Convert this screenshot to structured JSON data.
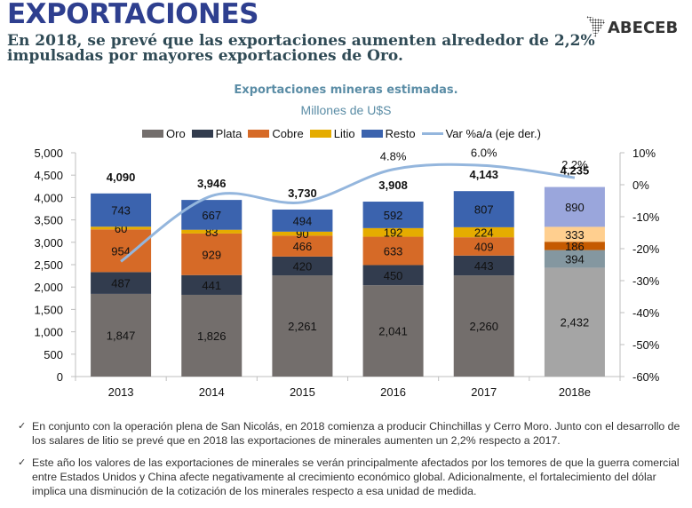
{
  "header": {
    "title": "EXPORTACIONES",
    "subtitle": "En 2018, se prevé que las exportaciones aumenten alrededor de 2,2% impulsadas por mayores exportaciones de Oro.",
    "logo_text": "ABECEB"
  },
  "chart_data": {
    "type": "bar",
    "stacked": true,
    "title": "Exportaciones mineras estimadas.",
    "subtitle": "Millones de U$S",
    "categories": [
      "2013",
      "2014",
      "2015",
      "2016",
      "2017",
      "2018e"
    ],
    "series": [
      {
        "name": "Oro",
        "color": "#736e6c",
        "estimate_color": "#a5a5a5",
        "values": [
          1847,
          1826,
          2261,
          2041,
          2260,
          2432
        ],
        "labels": [
          "1,847",
          "1,826",
          "2,261",
          "2,041",
          "2,260",
          "2,432"
        ]
      },
      {
        "name": "Plata",
        "color": "#323c4e",
        "estimate_color": "#8497a0",
        "values": [
          487,
          441,
          420,
          450,
          443,
          394
        ],
        "labels": [
          "487",
          "441",
          "420",
          "450",
          "443",
          "394"
        ]
      },
      {
        "name": "Cobre",
        "color": "#d66a27",
        "estimate_color": "#c55a00",
        "values": [
          954,
          929,
          466,
          633,
          409,
          186
        ],
        "labels": [
          "954",
          "929",
          "466",
          "633",
          "409",
          "186"
        ]
      },
      {
        "name": "Litio",
        "color": "#e5ac00",
        "estimate_color": "#ffcf8f",
        "values": [
          60,
          83,
          90,
          192,
          224,
          333
        ],
        "labels": [
          "60",
          "83",
          "90",
          "192",
          "224",
          "333"
        ]
      },
      {
        "name": "Resto",
        "color": "#3b63ae",
        "estimate_color": "#9aa6dc",
        "values": [
          743,
          667,
          494,
          592,
          807,
          890
        ],
        "labels": [
          "743",
          "667",
          "494",
          "592",
          "807",
          "890"
        ]
      }
    ],
    "totals": [
      4090,
      3946,
      3730,
      3908,
      4143,
      4235
    ],
    "total_labels": [
      "4,090",
      "3,946",
      "3,730",
      "3,908",
      "4,143",
      "4,235"
    ],
    "line": {
      "name": "Var %a/a (eje der.)",
      "color": "#94b6dd",
      "axis": "right",
      "values": [
        -24,
        -3.5,
        -5.5,
        4.8,
        6.0,
        2.2
      ],
      "labels": [
        "",
        "",
        "",
        "4.8%",
        "6.0%",
        "2.2%"
      ]
    },
    "y_left": {
      "min": 0,
      "max": 5000,
      "step": 500,
      "ticks": [
        "0",
        "500",
        "1,000",
        "1,500",
        "2,000",
        "2,500",
        "3,000",
        "3,500",
        "4,000",
        "4,500",
        "5,000"
      ]
    },
    "y_right": {
      "min": -60,
      "max": 10,
      "step": 10,
      "ticks": [
        "-60%",
        "-50%",
        "-40%",
        "-30%",
        "-20%",
        "-10%",
        "0%",
        "10%"
      ]
    },
    "legend": {
      "position": "top",
      "items": [
        "Oro",
        "Plata",
        "Cobre",
        "Litio",
        "Resto",
        "Var %a/a (eje der.)"
      ]
    },
    "grid": false
  },
  "notes": [
    "En conjunto con la operación plena de San Nicolás, en 2018 comienza a producir Chinchillas y Cerro Moro. Junto con el desarrollo de los salares de litio se prevé que en 2018 las exportaciones de minerales aumenten un 2,2% respecto a 2017.",
    "Este año los valores de las exportaciones de minerales se verán principalmente afectados por los temores de que la guerra comercial entre Estados Unidos y China afecte negativamente al crecimiento económico global. Adicionalmente, el fortalecimiento del dólar implica una disminución de la cotización de los minerales respecto a esa unidad de medida."
  ],
  "bullet_icon": "checkmark"
}
